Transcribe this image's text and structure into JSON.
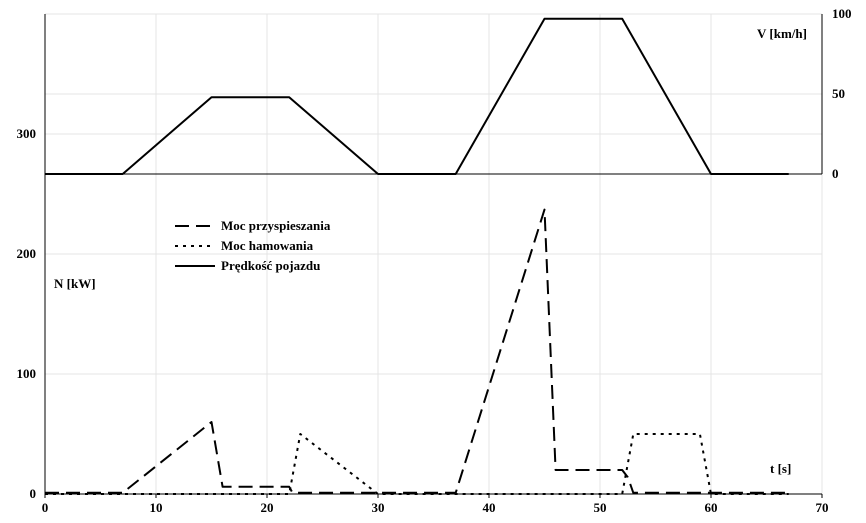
{
  "chart_data": {
    "type": "line",
    "x_axis": {
      "label": "t [s]",
      "range": [
        0,
        70
      ],
      "ticks": [
        0,
        10,
        20,
        30,
        40,
        50,
        60,
        70
      ]
    },
    "y_axis_left": {
      "label": "N [kW]",
      "range": [
        0,
        400
      ],
      "ticks": [
        0,
        100,
        200,
        300
      ]
    },
    "y_axis_right": {
      "label": "V [km/h]",
      "range": [
        0,
        100
      ],
      "ticks": [
        0,
        50,
        100
      ]
    },
    "grid": true,
    "legend_position": "upper-left",
    "series": [
      {
        "name": "Moc przyspieszania",
        "axis": "left",
        "style": "dashed",
        "points": [
          [
            0,
            1
          ],
          [
            7,
            1
          ],
          [
            15,
            60
          ],
          [
            16,
            6
          ],
          [
            22,
            6
          ],
          [
            22.3,
            1
          ],
          [
            37,
            1
          ],
          [
            45,
            237
          ],
          [
            46,
            20
          ],
          [
            52,
            20
          ],
          [
            52.5,
            14
          ],
          [
            53,
            1
          ],
          [
            67,
            1
          ]
        ]
      },
      {
        "name": "Moc hamowania",
        "axis": "left",
        "style": "dotted",
        "points": [
          [
            0,
            0
          ],
          [
            22,
            0
          ],
          [
            23,
            50
          ],
          [
            30,
            0
          ],
          [
            52,
            0
          ],
          [
            53,
            50
          ],
          [
            59,
            50
          ],
          [
            60,
            0
          ],
          [
            67,
            0
          ]
        ]
      },
      {
        "name": "Prędkość pojazdu",
        "axis": "right",
        "style": "solid",
        "points": [
          [
            0,
            0
          ],
          [
            7,
            0
          ],
          [
            15,
            48
          ],
          [
            22,
            48
          ],
          [
            30,
            0
          ],
          [
            37,
            0
          ],
          [
            45,
            97
          ],
          [
            52,
            97
          ],
          [
            60,
            0
          ],
          [
            67,
            0
          ]
        ]
      }
    ]
  }
}
